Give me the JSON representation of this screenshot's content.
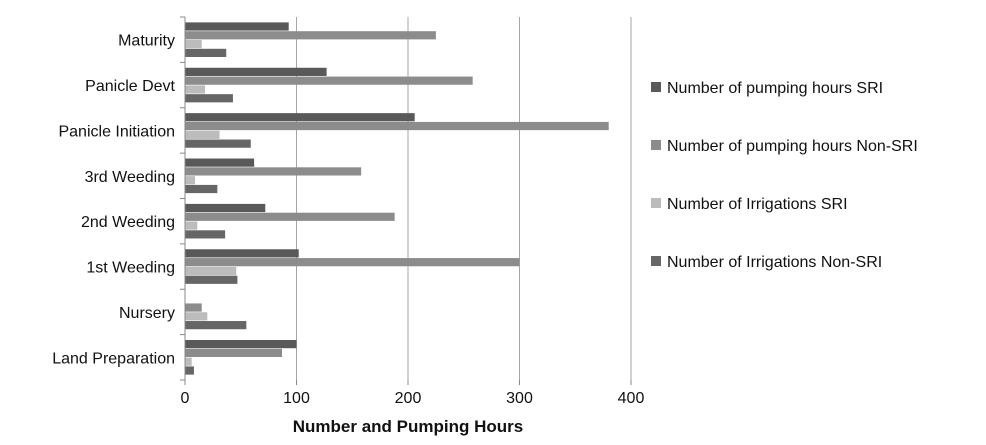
{
  "chart_data": {
    "type": "bar",
    "orientation": "horizontal",
    "title": "",
    "xlabel": "Number and Pumping Hours",
    "ylabel": "",
    "xlim": [
      0,
      400
    ],
    "x_ticks": [
      0,
      100,
      200,
      300,
      400
    ],
    "grid": "vertical gridlines",
    "legend_position": "right",
    "categories": [
      "Land Preparation",
      "Nursery",
      "1st Weeding",
      "2nd Weeding",
      "3rd Weeding",
      "Panicle Initiation",
      "Panicle Devt",
      "Maturity"
    ],
    "series": [
      {
        "name": "Number of pumping hours SRI",
        "color": "#595959",
        "values": [
          100,
          0,
          102,
          72,
          62,
          206,
          127,
          93
        ]
      },
      {
        "name": "Number of pumping hours Non-SRI",
        "color": "#8c8c8c",
        "values": [
          87,
          15,
          300,
          188,
          158,
          380,
          258,
          225
        ]
      },
      {
        "name": "Number of Irrigations SRI",
        "color": "#bcbcbc",
        "values": [
          6,
          20,
          46,
          11,
          9,
          31,
          18,
          15
        ]
      },
      {
        "name": "Number of Irrigations Non-SRI",
        "color": "#666666",
        "values": [
          8,
          55,
          47,
          36,
          29,
          59,
          43,
          37
        ]
      }
    ]
  }
}
